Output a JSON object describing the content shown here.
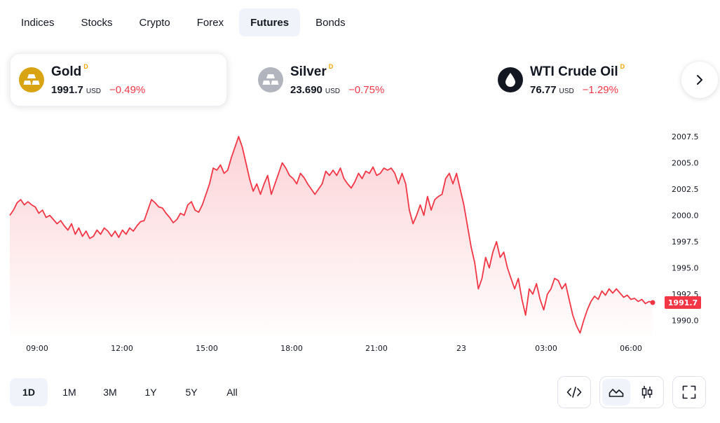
{
  "tabs": [
    {
      "label": "Indices",
      "active": false
    },
    {
      "label": "Stocks",
      "active": false
    },
    {
      "label": "Crypto",
      "active": false
    },
    {
      "label": "Forex",
      "active": false
    },
    {
      "label": "Futures",
      "active": true
    },
    {
      "label": "Bonds",
      "active": false
    }
  ],
  "cards": [
    {
      "name": "Gold",
      "badge": "D",
      "price": "1991.7",
      "unit": "USD",
      "change": "−0.49%",
      "icon": "gold-bars-icon",
      "active": true
    },
    {
      "name": "Silver",
      "badge": "D",
      "price": "23.690",
      "unit": "USD",
      "change": "−0.75%",
      "icon": "silver-bars-icon",
      "active": false
    },
    {
      "name": "WTI Crude Oil",
      "badge": "D",
      "price": "76.77",
      "unit": "USD",
      "change": "−1.29%",
      "icon": "oil-drop-icon",
      "active": false
    }
  ],
  "colors": {
    "line": "#f23645",
    "change_negative": "#f23645",
    "gold": "#d9a414",
    "silver": "#b2b5be",
    "oil": "#131722",
    "badge": "#f7a600"
  },
  "chart_data": {
    "type": "area",
    "y_ticks": [
      "2007.5",
      "2005.0",
      "2002.5",
      "2000.0",
      "1997.5",
      "1995.0",
      "1992.5",
      "1990.0"
    ],
    "ylim": [
      1988.5,
      2008.5
    ],
    "x_ticks": [
      "09:00",
      "12:00",
      "15:00",
      "18:00",
      "21:00",
      "23",
      "03:00",
      "06:00"
    ],
    "last_value_label": "1991.7",
    "grid": false,
    "legend": "none",
    "series": [
      {
        "values": [
          2000.0,
          2000.5,
          2001.2,
          2001.5,
          2001.0,
          2001.3,
          2001.0,
          2000.8,
          2000.2,
          2000.5,
          1999.8,
          2000.0,
          1999.6,
          1999.2,
          1999.5,
          1999.0,
          1998.6,
          1999.2,
          1998.2,
          1998.8,
          1998.0,
          1998.5,
          1997.8,
          1998.0,
          1998.6,
          1998.2,
          1998.8,
          1998.5,
          1998.0,
          1998.5,
          1997.9,
          1998.6,
          1998.2,
          1998.8,
          1998.5,
          1999.0,
          1999.4,
          1999.5,
          2000.5,
          2001.5,
          2001.2,
          2000.8,
          2000.7,
          2000.2,
          1999.8,
          1999.3,
          1999.6,
          2000.2,
          2000.0,
          2001.0,
          2001.3,
          2000.5,
          2000.3,
          2001.0,
          2002.0,
          2003.0,
          2004.5,
          2004.3,
          2004.8,
          2004.0,
          2004.3,
          2005.5,
          2006.5,
          2007.5,
          2006.5,
          2005.0,
          2003.5,
          2002.3,
          2003.0,
          2002.0,
          2003.0,
          2003.8,
          2002.0,
          2003.0,
          2004.0,
          2005.0,
          2004.5,
          2003.8,
          2003.5,
          2003.0,
          2004.0,
          2003.6,
          2003.0,
          2002.5,
          2002.0,
          2002.5,
          2003.0,
          2004.2,
          2003.8,
          2004.3,
          2003.8,
          2004.5,
          2003.5,
          2003.0,
          2002.6,
          2003.2,
          2004.0,
          2003.5,
          2004.2,
          2004.0,
          2004.6,
          2003.8,
          2004.0,
          2004.5,
          2004.3,
          2004.5,
          2004.0,
          2003.0,
          2004.0,
          2003.0,
          2000.5,
          1999.2,
          2000.0,
          2001.0,
          2000.0,
          2001.8,
          2000.5,
          2001.5,
          2001.8,
          2002.0,
          2003.5,
          2004.0,
          2003.0,
          2004.0,
          2002.5,
          2001.0,
          1999.0,
          1997.0,
          1995.5,
          1993.0,
          1994.0,
          1996.0,
          1995.0,
          1996.5,
          1997.5,
          1996.0,
          1996.5,
          1995.0,
          1994.0,
          1993.0,
          1994.0,
          1992.0,
          1990.5,
          1993.0,
          1992.5,
          1993.5,
          1992.0,
          1991.0,
          1992.5,
          1993.0,
          1994.0,
          1993.8,
          1993.0,
          1993.5,
          1992.0,
          1990.5,
          1989.5,
          1988.8,
          1990.0,
          1991.0,
          1991.8,
          1992.3,
          1992.0,
          1992.8,
          1992.4,
          1993.0,
          1992.6,
          1993.0,
          1992.6,
          1992.2,
          1992.4,
          1992.0,
          1992.1,
          1991.8,
          1992.0,
          1991.6,
          1991.8,
          1991.7
        ]
      }
    ]
  },
  "ranges": [
    {
      "label": "1D",
      "active": true
    },
    {
      "label": "1M",
      "active": false
    },
    {
      "label": "3M",
      "active": false
    },
    {
      "label": "1Y",
      "active": false
    },
    {
      "label": "5Y",
      "active": false
    },
    {
      "label": "All",
      "active": false
    }
  ],
  "toolbar": {
    "embed_icon": "code-icon",
    "area_icon": "area-chart-icon",
    "candle_icon": "candlestick-icon",
    "fullscreen_icon": "fullscreen-icon"
  }
}
